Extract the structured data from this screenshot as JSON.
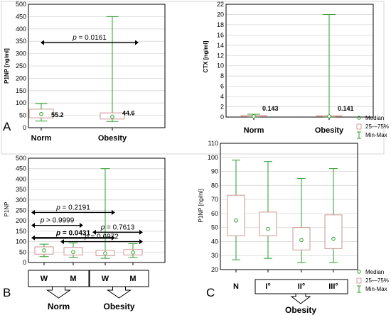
{
  "colors": {
    "whisker": "#2e9e2e",
    "box": "#c98b8b",
    "median": "#2e9e2e",
    "grid": "#d8d8d8"
  },
  "legend": {
    "median": "Median",
    "box": "25—75%",
    "range": "Min-Max"
  },
  "chart_data": [
    {
      "panel": "A",
      "type": "boxplot",
      "ylabel": "P1NP [ng/ml]",
      "ylim": [
        0,
        500
      ],
      "yticks": [
        "0",
        "50",
        "100",
        "150",
        "200",
        "250",
        "300",
        "350",
        "400",
        "450",
        "500"
      ],
      "categories": [
        "Norm",
        "Obesity"
      ],
      "boxes": [
        {
          "min": 27,
          "q1": 40,
          "median": 55.2,
          "q3": 75,
          "max": 98
        },
        {
          "min": 25,
          "q1": 35,
          "median": 44.6,
          "q3": 60,
          "max": 450
        }
      ],
      "median_labels": [
        "55.2",
        "44.6"
      ],
      "comparisons": [
        {
          "from": 0,
          "to": 1,
          "y": 345,
          "p_prefix": "p",
          "p_value": " = 0.0161",
          "bold": false
        }
      ]
    },
    {
      "panel": "",
      "type": "boxplot",
      "ylabel": "CTX [ng/ml]",
      "ylim": [
        0,
        22
      ],
      "yticks": [
        "0",
        "2",
        "4",
        "6",
        "8",
        "10",
        "12",
        "14",
        "16",
        "18",
        "20",
        "22"
      ],
      "categories": [
        "Norm",
        "Obesity"
      ],
      "boxes": [
        {
          "min": 0.05,
          "q1": 0.1,
          "median": 0.143,
          "q3": 0.3,
          "max": 0.55
        },
        {
          "min": 0.04,
          "q1": 0.1,
          "median": 0.141,
          "q3": 0.25,
          "max": 20
        }
      ],
      "median_labels": [
        "0.143",
        "0.141"
      ],
      "comparisons": []
    },
    {
      "panel": "B",
      "type": "boxplot",
      "ylabel": "P1NP",
      "ylim": [
        0,
        500
      ],
      "yticks": [
        "0",
        "50",
        "100",
        "150",
        "200",
        "250",
        "300",
        "350",
        "400",
        "450",
        "500"
      ],
      "categories": [
        "W",
        "M",
        "W",
        "M"
      ],
      "groups": [
        {
          "label": "Norm",
          "members": [
            0,
            1
          ]
        },
        {
          "label": "Obesity",
          "members": [
            2,
            3
          ]
        }
      ],
      "boxes": [
        {
          "min": 28,
          "q1": 40,
          "median": 58,
          "q3": 75,
          "max": 88
        },
        {
          "min": 24,
          "q1": 36,
          "median": 50,
          "q3": 72,
          "max": 94
        },
        {
          "min": 20,
          "q1": 32,
          "median": 44,
          "q3": 58,
          "max": 450
        },
        {
          "min": 24,
          "q1": 36,
          "median": 48,
          "q3": 62,
          "max": 90
        }
      ],
      "median_labels": [],
      "comparisons": [
        {
          "from": 0,
          "to": 2,
          "y": 240,
          "p_prefix": "p",
          "p_value": " = 0.2191",
          "bold": false
        },
        {
          "from": 0,
          "to": 1,
          "y": 178,
          "p_prefix": "p",
          "p_value": " > 0.9999",
          "bold": false
        },
        {
          "from": 0,
          "to": 2,
          "y": 118,
          "p_prefix": "p",
          "p_value": " = 0.0431",
          "bold": true
        },
        {
          "from": 2,
          "to": 3,
          "y": 145,
          "p_prefix": "p",
          "p_value": " = 0.7613",
          "bold": false
        },
        {
          "from": 1,
          "to": 3,
          "y": 100,
          "p_prefix": "p",
          "p_value": " = 0.6972",
          "bold": false
        }
      ]
    },
    {
      "panel": "C",
      "type": "boxplot",
      "ylabel": "P1NP [ng/ml]",
      "ylim": [
        20,
        110
      ],
      "yticks": [
        "20",
        "30",
        "40",
        "50",
        "60",
        "70",
        "80",
        "90",
        "100",
        "110"
      ],
      "categories": [
        "N",
        "I°",
        "II°",
        "III°"
      ],
      "groups": [
        {
          "label": "Obesity",
          "members": [
            1,
            2,
            3
          ]
        }
      ],
      "boxes": [
        {
          "min": 27,
          "q1": 44,
          "median": 55,
          "q3": 73,
          "max": 98
        },
        {
          "min": 28,
          "q1": 44,
          "median": 49,
          "q3": 61,
          "max": 97
        },
        {
          "min": 25,
          "q1": 34,
          "median": 41,
          "q3": 50,
          "max": 85
        },
        {
          "min": 25,
          "q1": 35,
          "median": 42,
          "q3": 59,
          "max": 92
        }
      ],
      "median_labels": [],
      "comparisons": []
    }
  ]
}
